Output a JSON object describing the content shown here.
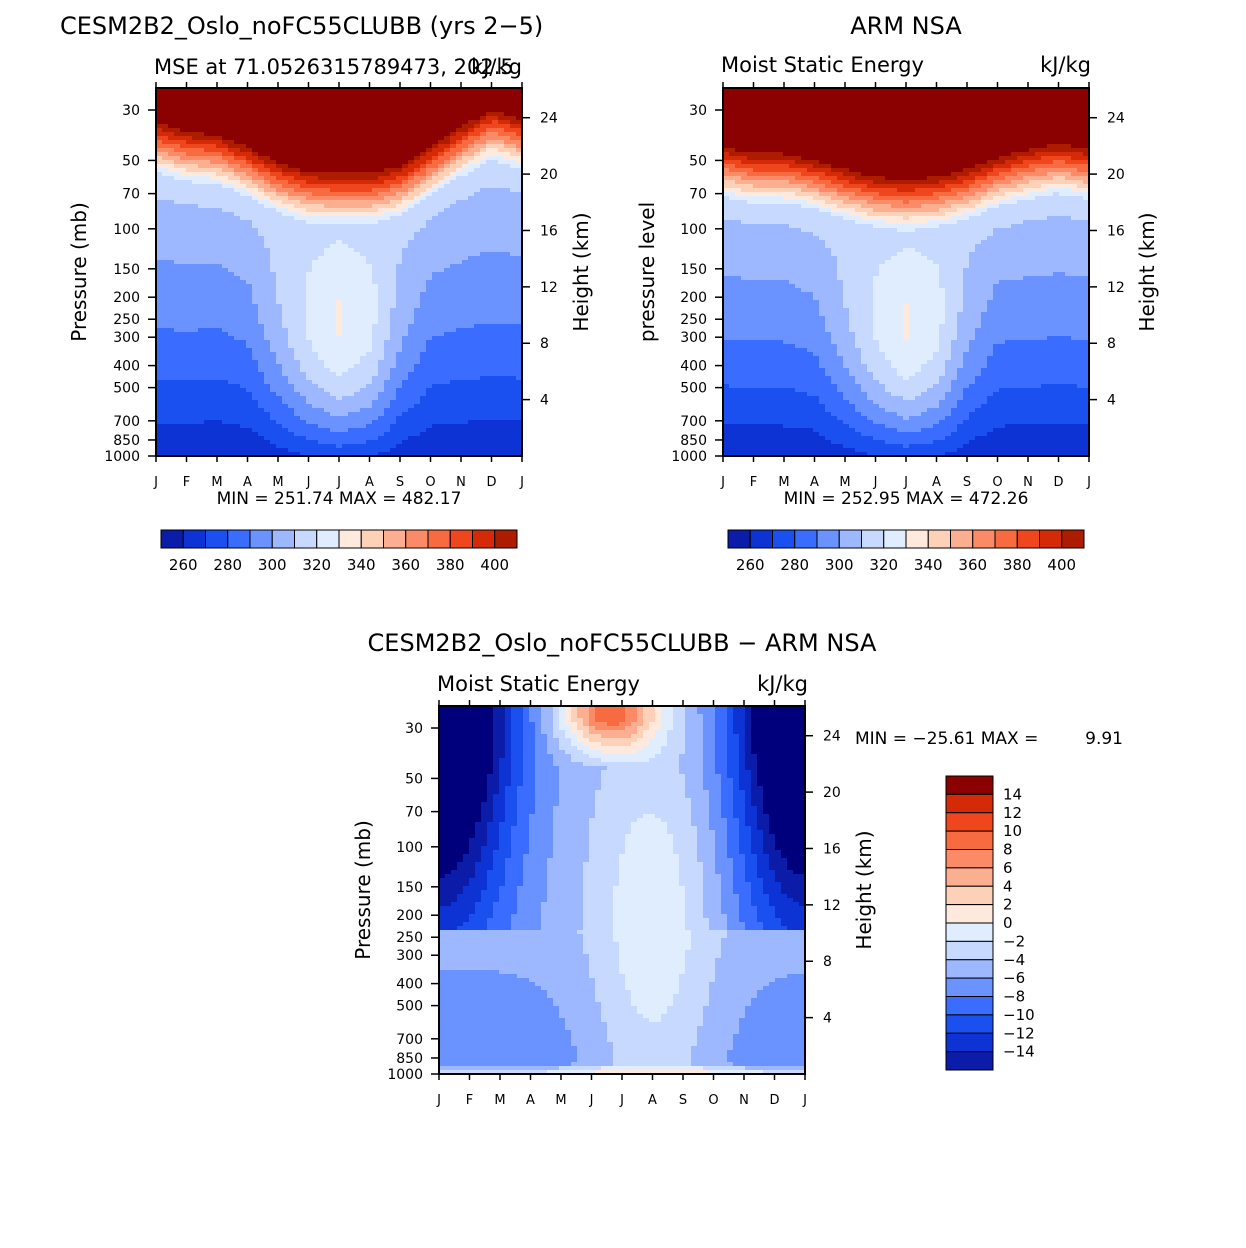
{
  "colors": {
    "mse_levels": [
      "#00007d",
      "#0a1ca8",
      "#0d33d4",
      "#1a4ff0",
      "#3a6cff",
      "#6a93ff",
      "#9db8ff",
      "#c7d9ff",
      "#dfedff",
      "#fee9dc",
      "#fdd0b8",
      "#fcae90",
      "#fb8b66",
      "#f86a3f",
      "#f0461e",
      "#d42a08",
      "#ae1c00",
      "#8b0000"
    ],
    "diff_levels": [
      "#00007d",
      "#0a1ca8",
      "#0d33d4",
      "#1a4ff0",
      "#3a6cff",
      "#6a93ff",
      "#9db8ff",
      "#c7d9ff",
      "#dfedff",
      "#fee9dc",
      "#fdd0b8",
      "#fcae90",
      "#fb8b66",
      "#f86a3f",
      "#f0461e",
      "#d42a08",
      "#8b0000"
    ]
  },
  "chart_data": [
    {
      "type": "heatmap",
      "id": "model",
      "title": "CESM2B2_Oslo_noFC55CLUBB (yrs 2−5)",
      "left_label": "MSE at 71.0526315789473, 202.5",
      "right_label": "kJ/kg",
      "ylabel": "Pressure (mb)",
      "ylabel_right": "Height (km)",
      "stats": "MIN = 251.74 MAX = 482.17",
      "x_ticks": [
        "J",
        "F",
        "M",
        "A",
        "M",
        "J",
        "J",
        "A",
        "S",
        "O",
        "N",
        "D",
        "J"
      ],
      "y_ticks": [
        30,
        50,
        70,
        100,
        150,
        200,
        250,
        300,
        400,
        500,
        700,
        850,
        1000
      ],
      "y_right_ticks": [
        24,
        20,
        16,
        12,
        8,
        4
      ],
      "ylim_mb": [
        1000,
        24
      ],
      "colorbar_labels": [
        "260",
        "280",
        "300",
        "320",
        "340",
        "360",
        "380",
        "400"
      ],
      "contour_start": 255,
      "contour_step": 10,
      "surface_value": 262,
      "trop_pressure": [
        55,
        60,
        62,
        70,
        82,
        90,
        92,
        92,
        85,
        70,
        57,
        48,
        53
      ],
      "dip": [
        14,
        14,
        13,
        15,
        28,
        42,
        52,
        44,
        24,
        14,
        14,
        14,
        14
      ]
    },
    {
      "type": "heatmap",
      "id": "obs",
      "title": "ARM NSA",
      "left_label": "Moist Static Energy",
      "right_label": "kJ/kg",
      "ylabel": "pressure level",
      "ylabel_right": "Height (km)",
      "stats": "MIN = 252.95 MAX = 472.26",
      "x_ticks": [
        "J",
        "F",
        "M",
        "A",
        "M",
        "J",
        "J",
        "A",
        "S",
        "O",
        "N",
        "D",
        "J"
      ],
      "y_ticks": [
        30,
        50,
        70,
        100,
        150,
        200,
        250,
        300,
        400,
        500,
        700,
        850,
        1000
      ],
      "y_right_ticks": [
        24,
        20,
        16,
        12,
        8,
        4
      ],
      "ylim_mb": [
        1000,
        24
      ],
      "colorbar_labels": [
        "260",
        "280",
        "300",
        "320",
        "340",
        "360",
        "380",
        "400"
      ],
      "contour_start": 255,
      "contour_step": 10,
      "surface_value": 262,
      "trop_pressure": [
        70,
        75,
        75,
        80,
        88,
        95,
        98,
        95,
        88,
        78,
        72,
        68,
        72
      ],
      "dip": [
        14,
        14,
        14,
        16,
        28,
        42,
        52,
        44,
        24,
        14,
        14,
        14,
        14
      ]
    },
    {
      "type": "heatmap",
      "id": "diff",
      "title": "CESM2B2_Oslo_noFC55CLUBB − ARM NSA",
      "left_label": "Moist Static Energy",
      "right_label": "kJ/kg",
      "ylabel": "Pressure (mb)",
      "ylabel_right": "Height (km)",
      "stats_label": "MIN = −25.61 MAX =",
      "stats_max": "9.91",
      "x_ticks": [
        "J",
        "F",
        "M",
        "A",
        "M",
        "J",
        "J",
        "A",
        "S",
        "O",
        "N",
        "D",
        "J"
      ],
      "y_ticks": [
        30,
        50,
        70,
        100,
        150,
        200,
        250,
        300,
        400,
        500,
        700,
        850,
        1000
      ],
      "y_right_ticks": [
        24,
        20,
        16,
        12,
        8,
        4
      ],
      "ylim_mb": [
        1000,
        24
      ],
      "colorbar_labels": [
        "14",
        "12",
        "10",
        "8",
        "6",
        "4",
        "2",
        "0",
        "−2",
        "−4",
        "−6",
        "−8",
        "−10",
        "−12",
        "−14"
      ],
      "contour_start": -16,
      "contour_step": 2
    }
  ]
}
